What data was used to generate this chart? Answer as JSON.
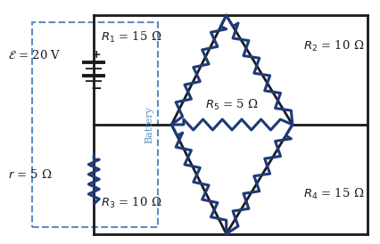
{
  "bg_color": "#ffffff",
  "wire_color": "#1a1a1a",
  "resistor_color": "#1e3a7a",
  "dashed_color": "#5b8ec4",
  "battery_color": "#1a1a1a",
  "emf_label": "$\\mathcal{E}$ = 20 V",
  "r_label": "$r$ = 5 Ω",
  "R1_label": "$R_1$ = 15 Ω",
  "R2_label": "$R_2$ = 10 Ω",
  "R3_label": "$R_3$ = 10 Ω",
  "R4_label": "$R_4$ = 15 Ω",
  "R5_label": "$R_5$ = 5 Ω",
  "battery_label": "Battery",
  "lw_wire": 2.0,
  "lw_res": 2.2,
  "lw_dash": 1.5
}
